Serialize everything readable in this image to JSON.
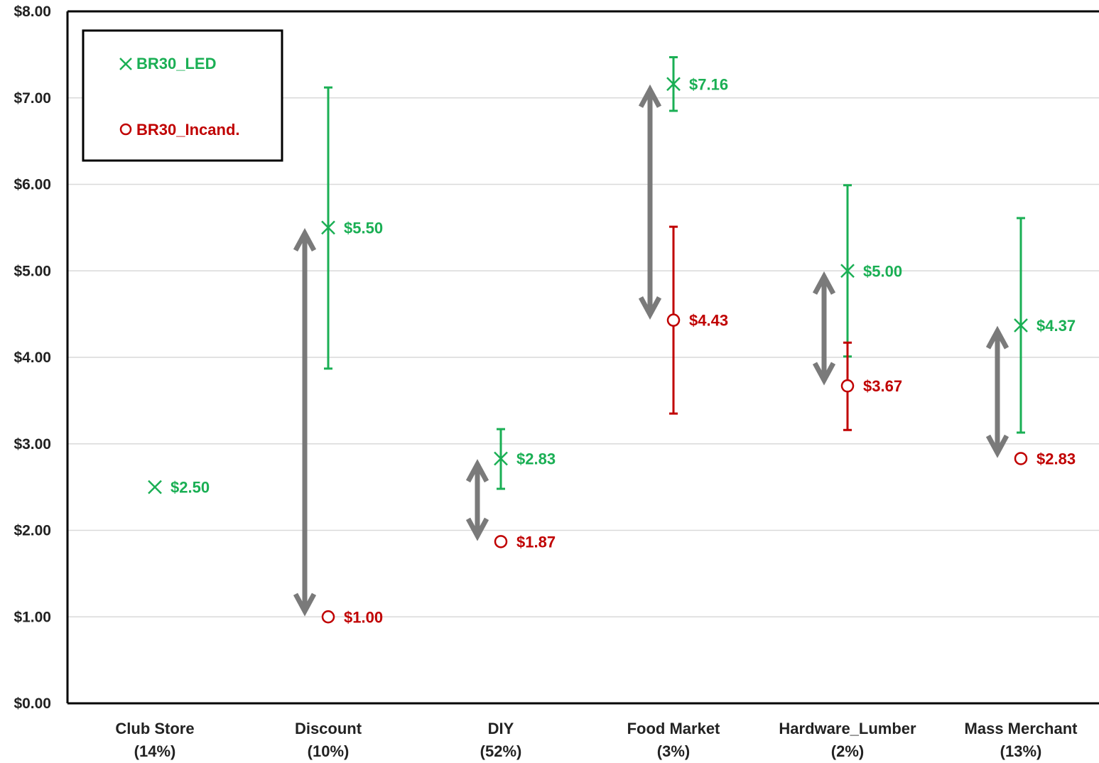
{
  "chart_data": {
    "type": "scatter",
    "ylim": [
      0,
      8
    ],
    "yticks": [
      "$0.00",
      "$1.00",
      "$2.00",
      "$3.00",
      "$4.00",
      "$5.00",
      "$6.00",
      "$7.00",
      "$8.00"
    ],
    "grid": true,
    "legend_position": "top-left",
    "categories": [
      {
        "name": "Club Store",
        "share": "(14%)"
      },
      {
        "name": "Discount",
        "share": "(10%)"
      },
      {
        "name": "DIY",
        "share": "(52%)"
      },
      {
        "name": "Food Market",
        "share": "(3%)"
      },
      {
        "name": "Hardware_Lumber",
        "share": "(2%)"
      },
      {
        "name": "Mass Merchant",
        "share": "(13%)"
      }
    ],
    "series": [
      {
        "name": "BR30_LED",
        "marker": "x",
        "color": "#1aaf54",
        "points": [
          {
            "category": "Club Store",
            "value": 2.5,
            "label": "$2.50",
            "err": null
          },
          {
            "category": "Discount",
            "value": 5.5,
            "label": "$5.50",
            "err": [
              3.87,
              7.12
            ]
          },
          {
            "category": "DIY",
            "value": 2.83,
            "label": "$2.83",
            "err": [
              2.48,
              3.17
            ]
          },
          {
            "category": "Food Market",
            "value": 7.16,
            "label": "$7.16",
            "err": [
              6.85,
              7.47
            ]
          },
          {
            "category": "Hardware_Lumber",
            "value": 5.0,
            "label": "$5.00",
            "err": [
              4.01,
              5.99
            ]
          },
          {
            "category": "Mass Merchant",
            "value": 4.37,
            "label": "$4.37",
            "err": [
              3.13,
              5.61
            ]
          }
        ]
      },
      {
        "name": "BR30_Incand.",
        "marker": "o",
        "color": "#c00000",
        "points": [
          {
            "category": "Club Store",
            "value": null,
            "label": "",
            "err": null
          },
          {
            "category": "Discount",
            "value": 1.0,
            "label": "$1.00",
            "err": null
          },
          {
            "category": "DIY",
            "value": 1.87,
            "label": "$1.87",
            "err": [
              1.83,
              1.91
            ]
          },
          {
            "category": "Food Market",
            "value": 4.43,
            "label": "$4.43",
            "err": [
              3.35,
              5.51
            ]
          },
          {
            "category": "Hardware_Lumber",
            "value": 3.67,
            "label": "$3.67",
            "err": [
              3.16,
              4.17
            ]
          },
          {
            "category": "Mass Merchant",
            "value": 2.83,
            "label": "$2.83",
            "err": [
              2.81,
              2.85
            ]
          }
        ]
      }
    ],
    "difference_arrows": [
      {
        "category": "Discount",
        "from": 1.0,
        "to": 5.5
      },
      {
        "category": "DIY",
        "from": 1.87,
        "to": 2.83
      },
      {
        "category": "Food Market",
        "from": 4.43,
        "to": 7.16
      },
      {
        "category": "Hardware_Lumber",
        "from": 3.67,
        "to": 5.0
      },
      {
        "category": "Mass Merchant",
        "from": 2.83,
        "to": 4.37
      }
    ],
    "arrow_color": "#7a7a7a"
  }
}
